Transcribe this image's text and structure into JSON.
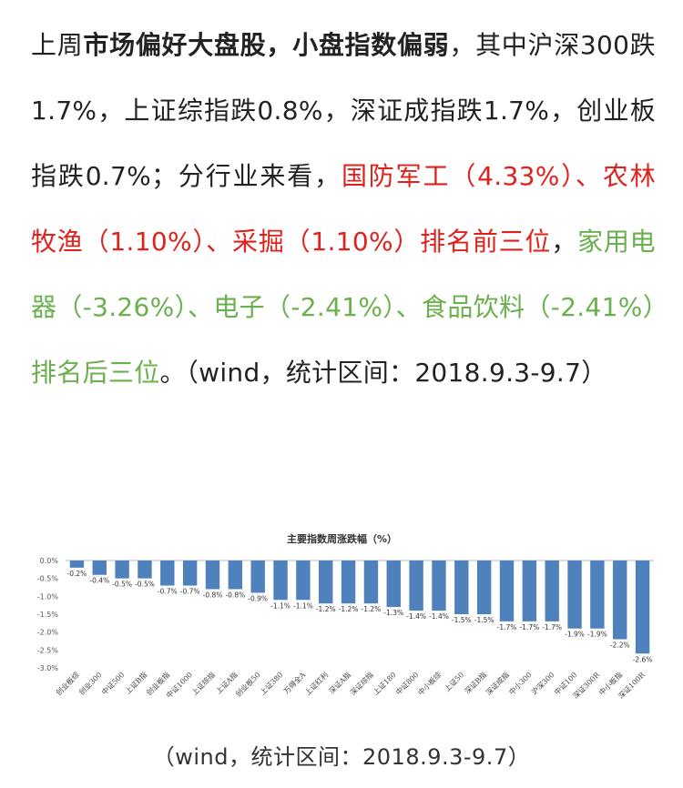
{
  "paragraph": {
    "s1": "上周",
    "s2": "市场偏好大盘股，小盘指数偏弱",
    "s3": "，其中沪深300跌1.7%，上证综指跌0.8%，深证成指跌1.7%，创业板指跌0.7%；分行业来看，",
    "s4": "国防军工（4.33%）、农林牧渔（1.10%）、采掘（1.10%）排名前三位",
    "s5": "，",
    "s6": "家用电器（-3.26%）、电子（-2.41%）、食品饮料（-2.41%）排名后三位",
    "s7": "。（wind，统计区间：2018.9.3-9.7）"
  },
  "caption": "（wind，统计区间：2018.9.3-9.7）",
  "colors": {
    "red": "#e0201b",
    "green": "#6ab04c",
    "bar": "#4f81bd"
  },
  "chart_data": {
    "type": "bar",
    "title": "主要指数周涨跌幅（%）",
    "categories": [
      "创业板综",
      "创业300",
      "中证500",
      "上证B指",
      "创业板指",
      "中证1000",
      "上证综指",
      "上证A指",
      "创业板50",
      "上证380",
      "万得全A",
      "上证红利",
      "深证A指",
      "深证综指",
      "上证180",
      "中证800",
      "中小板综",
      "上证50",
      "深证B指",
      "深证成指",
      "中小300",
      "沪深300",
      "中证100",
      "深证300R",
      "中小板指",
      "深证100R"
    ],
    "values": [
      -0.2,
      -0.4,
      -0.5,
      -0.5,
      -0.7,
      -0.7,
      -0.8,
      -0.8,
      -0.9,
      -1.1,
      -1.1,
      -1.2,
      -1.2,
      -1.2,
      -1.3,
      -1.4,
      -1.4,
      -1.5,
      -1.5,
      -1.7,
      -1.7,
      -1.7,
      -1.9,
      -1.9,
      -2.2,
      -2.6
    ],
    "data_labels": [
      "-0.2%",
      "-0.4%",
      "-0.5%",
      "-0.5%",
      "-0.7%",
      "-0.7%",
      "-0.8%",
      "-0.8%",
      "-0.9%",
      "-1.1%",
      "-1.1%",
      "-1.2%",
      "-1.2%",
      "-1.2%",
      "-1.3%",
      "-1.4%",
      "-1.4%",
      "-1.5%",
      "-1.5%",
      "-1.7%",
      "-1.7%",
      "-1.7%",
      "-1.9%",
      "-1.9%",
      "-2.2%",
      "-2.6%"
    ],
    "yticks": [
      "0.0%",
      "-0.5%",
      "-1.0%",
      "-1.5%",
      "-2.0%",
      "-2.5%",
      "-3.0%"
    ],
    "ytick_values": [
      0,
      -0.5,
      -1.0,
      -1.5,
      -2.0,
      -2.5,
      -3.0
    ],
    "ylim": [
      -3.0,
      0.0
    ],
    "grid": false,
    "legend": "none"
  }
}
